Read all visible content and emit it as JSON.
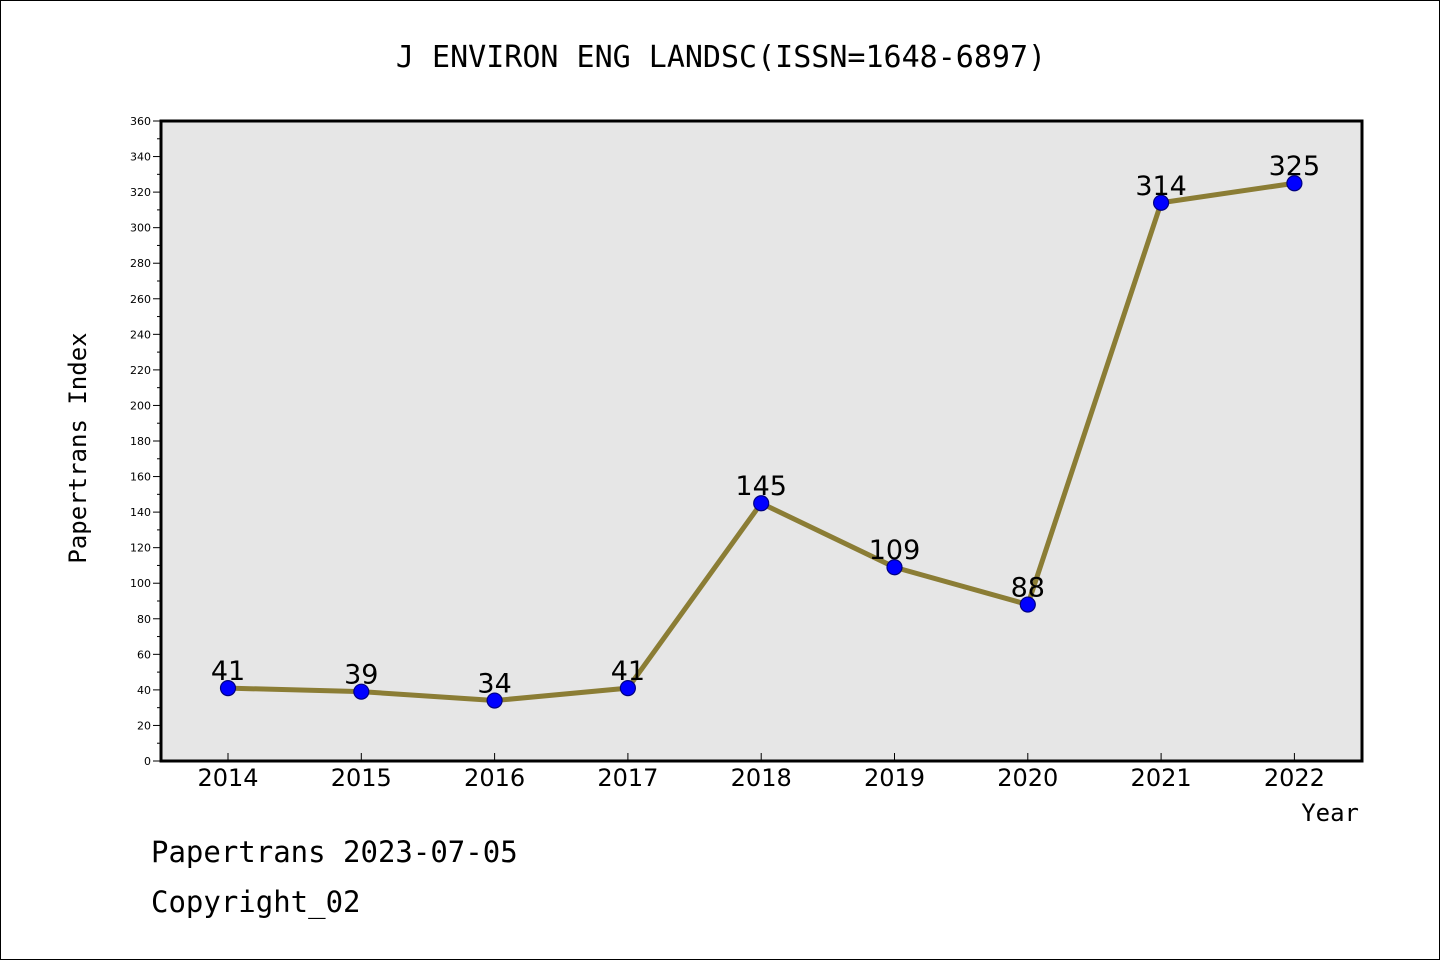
{
  "chart_data": {
    "type": "line",
    "title": "J ENVIRON ENG LANDSC(ISSN=1648-6897)",
    "xlabel": "Year",
    "ylabel": "Papertrans Index",
    "categories": [
      "2014",
      "2015",
      "2016",
      "2017",
      "2018",
      "2019",
      "2020",
      "2021",
      "2022"
    ],
    "series": [
      {
        "values": [
          41,
          39,
          34,
          41,
          145,
          109,
          88,
          314,
          325
        ]
      }
    ],
    "data_labels": [
      "41",
      "39",
      "34",
      "41",
      "145",
      "109",
      "88",
      "314",
      "325"
    ],
    "ylim": [
      0,
      360
    ],
    "y_ticks": [
      "0",
      "20",
      "40",
      "60",
      "80",
      "100",
      "120",
      "140",
      "160",
      "180",
      "200",
      "220",
      "240",
      "260",
      "280",
      "300",
      "320",
      "340",
      "360"
    ],
    "grid": false,
    "legend": "none",
    "colors": {
      "line": "#8b7d35",
      "marker_fill": "#0000ff",
      "marker_stroke": "#000080",
      "plot_background": "#e6e6e6"
    }
  },
  "footer": {
    "watermark": "Papertrans 2023-07-05",
    "copyright": "Copyright_02"
  }
}
